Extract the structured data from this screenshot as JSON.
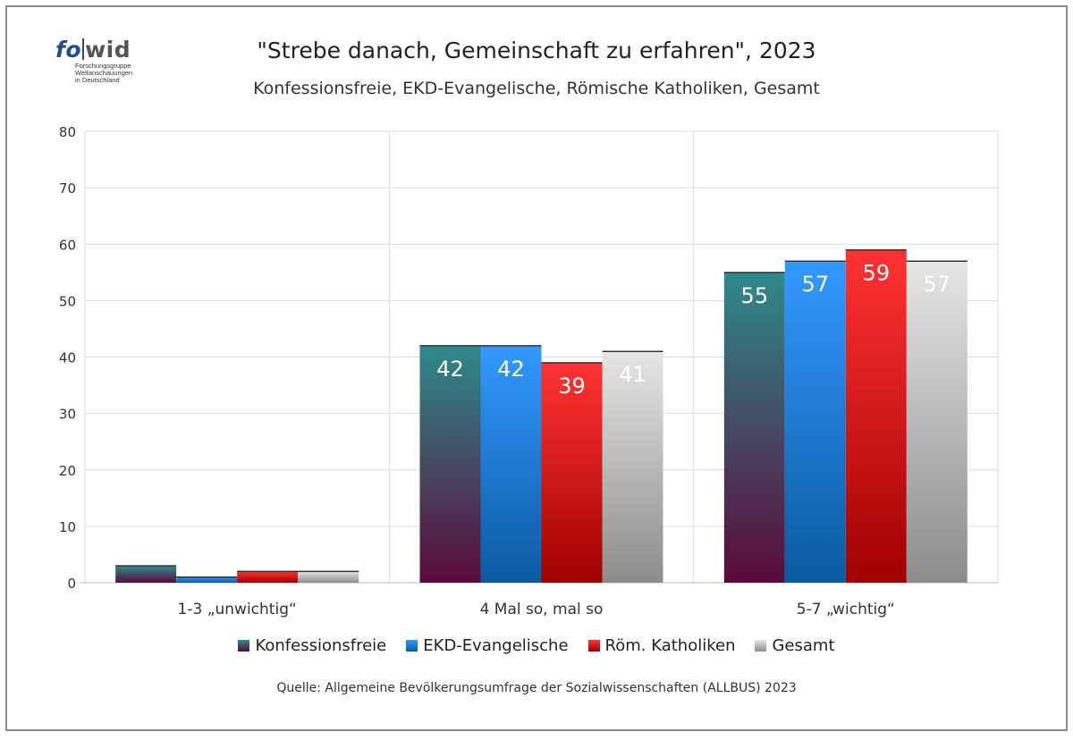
{
  "logo": {
    "word_fo": "fo",
    "word_wid": "wid",
    "line1": "Forschungsgruppe",
    "line2": "Weltanschauungen",
    "line3": "in Deutschland"
  },
  "chart_data": {
    "type": "bar",
    "title": "\"Strebe danach, Gemeinschaft zu erfahren\", 2023",
    "subtitle": "Konfessionsfreie, EKD-Evangelische, Römische Katholiken, Gesamt",
    "categories": [
      "1-3 „unwichtig“",
      "4  Mal so, mal so",
      "5-7 „wichtig“"
    ],
    "series": [
      {
        "name": "Konfessionsfreie",
        "values": [
          3,
          42,
          55
        ],
        "color_top": "#2e8a8a",
        "color_bottom": "#5a0a3a"
      },
      {
        "name": "EKD-Evangelische",
        "values": [
          1,
          42,
          57
        ],
        "color_top": "#3399ff",
        "color_bottom": "#0a5aa0"
      },
      {
        "name": "Röm. Katholiken",
        "values": [
          2,
          39,
          59
        ],
        "color_top": "#ff3333",
        "color_bottom": "#a00000"
      },
      {
        "name": "Gesamt",
        "values": [
          2,
          41,
          57
        ],
        "color_top": "#e6e6e6",
        "color_bottom": "#8c8c8c"
      }
    ],
    "data_labels": [
      [
        "",
        "42",
        "55"
      ],
      [
        "",
        "42",
        "57"
      ],
      [
        "",
        "39",
        "59"
      ],
      [
        "",
        "41",
        "57"
      ]
    ],
    "ylim": [
      0,
      80
    ],
    "yticks": [
      0,
      10,
      20,
      30,
      40,
      50,
      60,
      70,
      80
    ],
    "grid": true,
    "legend": "bottom"
  },
  "source": "Quelle: Allgemeine Bevölkerungsumfrage der Sozialwissenschaften (ALLBUS) 2023"
}
